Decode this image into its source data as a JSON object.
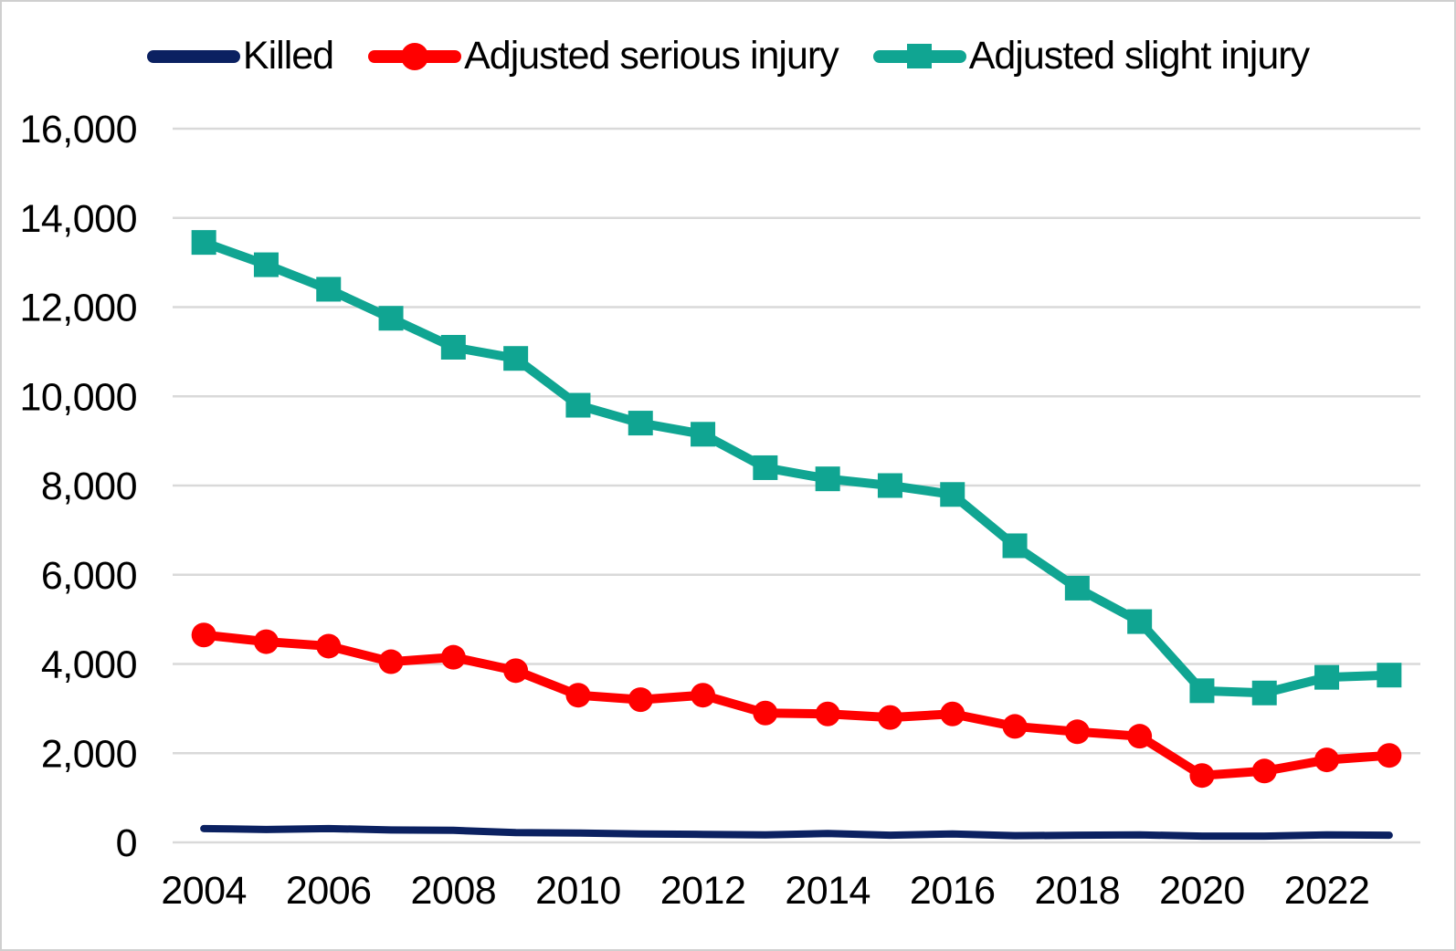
{
  "chart_data": {
    "type": "line",
    "title": "",
    "xlabel": "",
    "ylabel": "",
    "grid": "horizontal",
    "legend_position": "top",
    "gridline_color": "#d9d9d9",
    "background_color": "#ffffff",
    "ylim": [
      0,
      16000
    ],
    "x": [
      2004,
      2005,
      2006,
      2007,
      2008,
      2009,
      2010,
      2011,
      2012,
      2013,
      2014,
      2015,
      2016,
      2017,
      2018,
      2019,
      2020,
      2021,
      2022,
      2023
    ],
    "y_ticks": [
      {
        "value": 0,
        "label": "0"
      },
      {
        "value": 2000,
        "label": "2,000"
      },
      {
        "value": 4000,
        "label": "4,000"
      },
      {
        "value": 6000,
        "label": "6,000"
      },
      {
        "value": 8000,
        "label": "8,000"
      },
      {
        "value": 10000,
        "label": "10,000"
      },
      {
        "value": 12000,
        "label": "12,000"
      },
      {
        "value": 14000,
        "label": "14,000"
      },
      {
        "value": 16000,
        "label": "16,000"
      }
    ],
    "x_ticks": [
      {
        "index": 0,
        "label": "2004"
      },
      {
        "index": 2,
        "label": "2006"
      },
      {
        "index": 4,
        "label": "2008"
      },
      {
        "index": 6,
        "label": "2010"
      },
      {
        "index": 8,
        "label": "2012"
      },
      {
        "index": 10,
        "label": "2014"
      },
      {
        "index": 12,
        "label": "2016"
      },
      {
        "index": 14,
        "label": "2018"
      },
      {
        "index": 16,
        "label": "2020"
      },
      {
        "index": 18,
        "label": "2022"
      }
    ],
    "series": [
      {
        "name": "Killed",
        "color": "#0b2161",
        "marker": "none",
        "line_width": 8,
        "values": [
          310,
          290,
          310,
          280,
          270,
          220,
          210,
          190,
          180,
          170,
          200,
          160,
          190,
          150,
          160,
          170,
          140,
          140,
          170,
          160
        ]
      },
      {
        "name": "Adjusted serious injury",
        "color": "#ff0000",
        "marker": "circle",
        "line_width": 10,
        "values": [
          4650,
          4500,
          4400,
          4050,
          4150,
          3850,
          3300,
          3200,
          3300,
          2900,
          2880,
          2800,
          2880,
          2600,
          2480,
          2380,
          1500,
          1600,
          1850,
          1950
        ]
      },
      {
        "name": "Adjusted slight injury",
        "color": "#10a592",
        "marker": "square",
        "line_width": 10,
        "values": [
          13450,
          12950,
          12400,
          11750,
          11100,
          10850,
          9800,
          9400,
          9150,
          8400,
          8150,
          8000,
          7800,
          6650,
          5700,
          4950,
          3400,
          3350,
          3700,
          3750
        ]
      }
    ]
  }
}
